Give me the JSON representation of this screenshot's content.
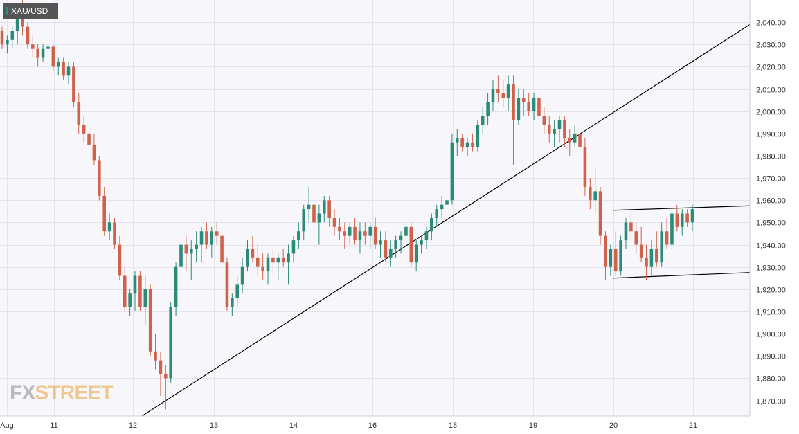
{
  "chart_data": {
    "type": "candlestick",
    "symbol": "XAU/USD",
    "ylim": [
      1863,
      2050
    ],
    "y_ticks": [
      "2,040.00",
      "2,030.00",
      "2,020.00",
      "2,010.00",
      "2,000.00",
      "1,990.00",
      "1,980.00",
      "1,970.00",
      "1,960.00",
      "1,950.00",
      "1,940.00",
      "1,930.00",
      "1,920.00",
      "1,910.00",
      "1,900.00",
      "1,890.00",
      "1,880.00",
      "1,870.00"
    ],
    "x_ticks": [
      "Aug",
      "11",
      "12",
      "13",
      "14",
      "16",
      "18",
      "19",
      "20",
      "21"
    ],
    "grid": true,
    "colors": {
      "up": "#2b8a78",
      "down": "#d0624c",
      "grid": "#e3e4ee",
      "background": "#f7f7fb",
      "trendline": "#000000"
    },
    "candles": [
      [
        2036,
        2038,
        2028,
        2030
      ],
      [
        2030,
        2034,
        2026,
        2032
      ],
      [
        2032,
        2038,
        2028,
        2036
      ],
      [
        2036,
        2048,
        2030,
        2046
      ],
      [
        2046,
        2050,
        2034,
        2038
      ],
      [
        2038,
        2040,
        2028,
        2030
      ],
      [
        2030,
        2034,
        2024,
        2028
      ],
      [
        2028,
        2030,
        2020,
        2024
      ],
      [
        2024,
        2030,
        2022,
        2028
      ],
      [
        2028,
        2031,
        2024,
        2029
      ],
      [
        2029,
        2030,
        2018,
        2020
      ],
      [
        2020,
        2024,
        2016,
        2022
      ],
      [
        2022,
        2024,
        2014,
        2016
      ],
      [
        2016,
        2022,
        2012,
        2020
      ],
      [
        2020,
        2022,
        2002,
        2004
      ],
      [
        2004,
        2008,
        1990,
        1994
      ],
      [
        1994,
        1998,
        1986,
        1990
      ],
      [
        1990,
        1994,
        1980,
        1985
      ],
      [
        1985,
        1990,
        1976,
        1978
      ],
      [
        1978,
        1980,
        1960,
        1962
      ],
      [
        1962,
        1966,
        1944,
        1946
      ],
      [
        1946,
        1954,
        1942,
        1950
      ],
      [
        1950,
        1952,
        1938,
        1940
      ],
      [
        1940,
        1944,
        1924,
        1926
      ],
      [
        1926,
        1930,
        1910,
        1912
      ],
      [
        1912,
        1920,
        1908,
        1918
      ],
      [
        1918,
        1928,
        1910,
        1926
      ],
      [
        1926,
        1928,
        1910,
        1912
      ],
      [
        1912,
        1926,
        1904,
        1920
      ],
      [
        1920,
        1922,
        1890,
        1892
      ],
      [
        1892,
        1900,
        1884,
        1888
      ],
      [
        1888,
        1892,
        1872,
        1882
      ],
      [
        1882,
        1886,
        1866,
        1880
      ],
      [
        1880,
        1914,
        1878,
        1912
      ],
      [
        1912,
        1932,
        1908,
        1930
      ],
      [
        1930,
        1950,
        1926,
        1940
      ],
      [
        1940,
        1944,
        1928,
        1936
      ],
      [
        1936,
        1942,
        1924,
        1938
      ],
      [
        1938,
        1946,
        1932,
        1940
      ],
      [
        1940,
        1948,
        1932,
        1946
      ],
      [
        1946,
        1950,
        1938,
        1940
      ],
      [
        1940,
        1948,
        1934,
        1946
      ],
      [
        1946,
        1950,
        1940,
        1944
      ],
      [
        1944,
        1946,
        1930,
        1932
      ],
      [
        1932,
        1934,
        1910,
        1912
      ],
      [
        1912,
        1918,
        1908,
        1916
      ],
      [
        1916,
        1926,
        1912,
        1922
      ],
      [
        1922,
        1934,
        1918,
        1930
      ],
      [
        1930,
        1942,
        1928,
        1938
      ],
      [
        1938,
        1944,
        1932,
        1934
      ],
      [
        1934,
        1940,
        1926,
        1930
      ],
      [
        1930,
        1936,
        1924,
        1928
      ],
      [
        1928,
        1936,
        1922,
        1934
      ],
      [
        1934,
        1938,
        1926,
        1932
      ],
      [
        1932,
        1936,
        1924,
        1934
      ],
      [
        1934,
        1938,
        1930,
        1932
      ],
      [
        1932,
        1940,
        1922,
        1936
      ],
      [
        1936,
        1944,
        1932,
        1942
      ],
      [
        1942,
        1950,
        1938,
        1946
      ],
      [
        1946,
        1958,
        1942,
        1956
      ],
      [
        1956,
        1966,
        1950,
        1958
      ],
      [
        1958,
        1960,
        1944,
        1950
      ],
      [
        1950,
        1958,
        1940,
        1954
      ],
      [
        1954,
        1962,
        1950,
        1960
      ],
      [
        1960,
        1962,
        1948,
        1952
      ],
      [
        1952,
        1956,
        1944,
        1948
      ],
      [
        1948,
        1952,
        1942,
        1946
      ],
      [
        1946,
        1950,
        1938,
        1944
      ],
      [
        1944,
        1950,
        1940,
        1948
      ],
      [
        1948,
        1952,
        1940,
        1942
      ],
      [
        1942,
        1950,
        1936,
        1946
      ],
      [
        1946,
        1950,
        1940,
        1944
      ],
      [
        1944,
        1950,
        1938,
        1948
      ],
      [
        1948,
        1952,
        1938,
        1940
      ],
      [
        1940,
        1946,
        1934,
        1942
      ],
      [
        1942,
        1946,
        1932,
        1934
      ],
      [
        1934,
        1942,
        1930,
        1938
      ],
      [
        1938,
        1944,
        1934,
        1942
      ],
      [
        1942,
        1946,
        1936,
        1944
      ],
      [
        1944,
        1950,
        1942,
        1948
      ],
      [
        1948,
        1950,
        1930,
        1932
      ],
      [
        1932,
        1942,
        1928,
        1940
      ],
      [
        1940,
        1944,
        1936,
        1942
      ],
      [
        1942,
        1948,
        1938,
        1946
      ],
      [
        1946,
        1954,
        1942,
        1952
      ],
      [
        1952,
        1958,
        1948,
        1956
      ],
      [
        1956,
        1962,
        1952,
        1958
      ],
      [
        1958,
        1964,
        1954,
        1960
      ],
      [
        1960,
        1990,
        1958,
        1986
      ],
      [
        1986,
        1992,
        1980,
        1988
      ],
      [
        1988,
        1990,
        1982,
        1984
      ],
      [
        1984,
        1988,
        1980,
        1986
      ],
      [
        1986,
        1990,
        1982,
        1984
      ],
      [
        1984,
        1996,
        1982,
        1994
      ],
      [
        1994,
        2002,
        1990,
        1998
      ],
      [
        1998,
        2008,
        1994,
        2004
      ],
      [
        2004,
        2014,
        2000,
        2010
      ],
      [
        2010,
        2016,
        2004,
        2008
      ],
      [
        2008,
        2014,
        2002,
        2006
      ],
      [
        2006,
        2016,
        2000,
        2012
      ],
      [
        2012,
        2016,
        1976,
        1996
      ],
      [
        1996,
        2010,
        1994,
        2006
      ],
      [
        2006,
        2010,
        1998,
        2004
      ],
      [
        2004,
        2008,
        1998,
        2000
      ],
      [
        2000,
        2008,
        1996,
        2006
      ],
      [
        2006,
        2008,
        1996,
        1998
      ],
      [
        1998,
        2002,
        1990,
        1994
      ],
      [
        1994,
        1998,
        1986,
        1990
      ],
      [
        1990,
        1996,
        1984,
        1992
      ],
      [
        1992,
        1998,
        1986,
        1996
      ],
      [
        1996,
        1998,
        1984,
        1988
      ],
      [
        1988,
        1992,
        1980,
        1986
      ],
      [
        1986,
        1994,
        1984,
        1990
      ],
      [
        1990,
        1996,
        1982,
        1984
      ],
      [
        1984,
        1988,
        1962,
        1966
      ],
      [
        1966,
        1970,
        1956,
        1960
      ],
      [
        1960,
        1974,
        1954,
        1964
      ],
      [
        1964,
        1966,
        1940,
        1944
      ],
      [
        1944,
        1946,
        1924,
        1930
      ],
      [
        1930,
        1940,
        1926,
        1938
      ],
      [
        1938,
        1946,
        1926,
        1928
      ],
      [
        1928,
        1944,
        1926,
        1942
      ],
      [
        1942,
        1952,
        1938,
        1950
      ],
      [
        1950,
        1956,
        1942,
        1946
      ],
      [
        1946,
        1950,
        1936,
        1940
      ],
      [
        1940,
        1948,
        1932,
        1934
      ],
      [
        1934,
        1940,
        1924,
        1930
      ],
      [
        1930,
        1942,
        1926,
        1938
      ],
      [
        1938,
        1946,
        1930,
        1932
      ],
      [
        1932,
        1950,
        1930,
        1946
      ],
      [
        1946,
        1952,
        1938,
        1940
      ],
      [
        1940,
        1956,
        1938,
        1954
      ],
      [
        1954,
        1958,
        1946,
        1948
      ],
      [
        1948,
        1956,
        1944,
        1954
      ],
      [
        1954,
        1956,
        1948,
        1950
      ],
      [
        1950,
        1958,
        1946,
        1956
      ]
    ]
  },
  "header": {
    "symbol": "XAU/USD"
  },
  "watermark": {
    "fx": "FX",
    "street": "STREET"
  }
}
